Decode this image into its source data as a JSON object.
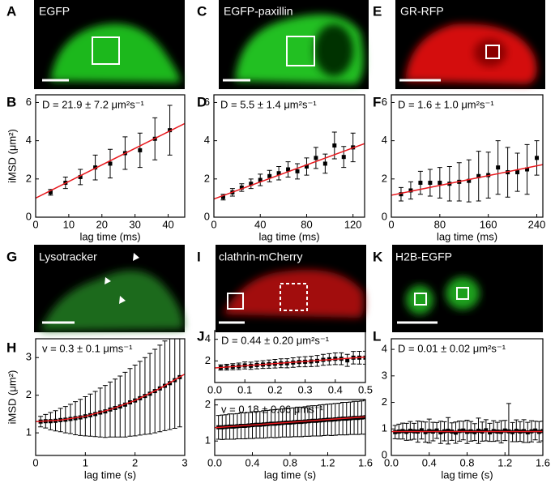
{
  "images": [
    {
      "letter": "A",
      "label": "EGFP"
    },
    {
      "letter": "C",
      "label": "EGFP-paxillin"
    },
    {
      "letter": "E",
      "label": "GR-RFP"
    },
    {
      "letter": "G",
      "label": "Lysotracker"
    },
    {
      "letter": "I",
      "label": "clathrin-mCherry"
    },
    {
      "letter": "K",
      "label": "H2B-EGFP"
    }
  ],
  "chart_data": [
    {
      "panel": "B",
      "type": "scatter",
      "annotation": "D = 21.9 ± 7.2 μm²s⁻¹",
      "x_label": "lag time (ms)",
      "y_label": "iMSD (μm²)",
      "x": [
        4.5,
        9,
        13.5,
        18,
        22.5,
        27,
        31.5,
        36,
        40.5
      ],
      "values": [
        1.3,
        1.8,
        2.1,
        2.6,
        2.8,
        3.35,
        3.5,
        4.1,
        4.55
      ],
      "errors": [
        0.15,
        0.3,
        0.4,
        0.65,
        0.75,
        0.85,
        0.9,
        1.1,
        1.3
      ],
      "color": "#000000",
      "fit": {
        "x": [
          0,
          45
        ],
        "y": [
          1.0,
          4.9
        ],
        "color": "#e8191e"
      },
      "xlim": [
        0,
        45
      ],
      "ylim": [
        0,
        6.4
      ],
      "xticks": [
        0,
        10,
        20,
        30,
        40
      ],
      "yticks": [
        0,
        2,
        4,
        6
      ]
    },
    {
      "panel": "D",
      "type": "scatter",
      "annotation": "D = 5.5 ± 1.4 μm²s⁻¹",
      "x_label": "lag time (ms)",
      "x": [
        8,
        16,
        24,
        32,
        40,
        48,
        56,
        64,
        72,
        80,
        88,
        96,
        104,
        112,
        120
      ],
      "values": [
        1.05,
        1.3,
        1.55,
        1.75,
        1.95,
        2.15,
        2.3,
        2.5,
        2.4,
        2.65,
        3.1,
        2.8,
        3.75,
        3.15,
        3.65
      ],
      "errors": [
        0.15,
        0.2,
        0.2,
        0.25,
        0.3,
        0.3,
        0.35,
        0.4,
        0.4,
        0.45,
        0.55,
        0.5,
        0.7,
        0.55,
        0.75
      ],
      "color": "#000000",
      "fit": {
        "x": [
          0,
          130
        ],
        "y": [
          0.95,
          3.85
        ],
        "color": "#e8191e"
      },
      "xlim": [
        0,
        130
      ],
      "ylim": [
        0,
        6.4
      ],
      "xticks": [
        0,
        40,
        80,
        120
      ],
      "yticks": [
        0,
        2,
        4,
        6
      ]
    },
    {
      "panel": "F",
      "type": "scatter",
      "annotation": "D = 1.6 ± 1.0 μm²s⁻¹",
      "x_label": "lag time (ms)",
      "x": [
        16,
        32,
        48,
        64,
        80,
        96,
        112,
        128,
        144,
        160,
        176,
        192,
        208,
        224,
        240
      ],
      "values": [
        1.2,
        1.4,
        1.8,
        1.8,
        1.8,
        1.75,
        1.85,
        1.9,
        2.15,
        2.2,
        2.6,
        2.35,
        2.35,
        2.5,
        3.1
      ],
      "errors": [
        0.35,
        0.45,
        0.6,
        0.7,
        0.8,
        0.9,
        1.0,
        1.1,
        1.3,
        1.2,
        1.4,
        1.3,
        1.0,
        1.3,
        0.9
      ],
      "color": "#000000",
      "fit": {
        "x": [
          0,
          250
        ],
        "y": [
          1.15,
          2.75
        ],
        "color": "#e8191e"
      },
      "xlim": [
        0,
        250
      ],
      "ylim": [
        0,
        6.4
      ],
      "xticks": [
        0,
        80,
        160,
        240
      ],
      "yticks": [
        0,
        2,
        4,
        6
      ]
    },
    {
      "panel": "H",
      "type": "scatter",
      "annotation": "v = 0.3 ± 0.1 μms⁻¹",
      "x_label": "lag time (s)",
      "y_label": "iMSD (μm²)",
      "x": [
        0.1,
        0.2,
        0.3,
        0.4,
        0.5,
        0.6,
        0.7,
        0.8,
        0.9,
        1.0,
        1.1,
        1.2,
        1.3,
        1.4,
        1.5,
        1.6,
        1.7,
        1.8,
        1.9,
        2.0,
        2.1,
        2.2,
        2.3,
        2.4,
        2.5,
        2.6,
        2.7,
        2.8,
        2.9
      ],
      "values": [
        1.3,
        1.31,
        1.31,
        1.32,
        1.34,
        1.35,
        1.37,
        1.39,
        1.41,
        1.44,
        1.47,
        1.5,
        1.54,
        1.57,
        1.62,
        1.66,
        1.7,
        1.75,
        1.81,
        1.86,
        1.92,
        1.98,
        2.04,
        2.11,
        2.18,
        2.25,
        2.32,
        2.4,
        2.48
      ],
      "errors": [
        0.14,
        0.18,
        0.23,
        0.27,
        0.31,
        0.35,
        0.39,
        0.44,
        0.48,
        0.52,
        0.56,
        0.6,
        0.65,
        0.69,
        0.73,
        0.77,
        0.81,
        0.86,
        0.9,
        0.94,
        0.98,
        1.02,
        1.07,
        1.11,
        1.15,
        1.19,
        1.23,
        1.28,
        1.32
      ],
      "color": "#000000",
      "fit": {
        "x": [
          0,
          0.5,
          1,
          1.5,
          2,
          2.5,
          3
        ],
        "y": [
          1.3,
          1.34,
          1.44,
          1.62,
          1.86,
          2.18,
          2.56
        ],
        "color": "#e8191e"
      },
      "xlim": [
        0,
        3
      ],
      "ylim": [
        0.4,
        3.5
      ],
      "xticks": [
        0,
        1,
        2,
        3
      ],
      "yticks": [
        1,
        2,
        3
      ]
    },
    {
      "panel": "J",
      "type": "scatter",
      "annotation": "D = 0.44 ± 0.20 μm²s⁻¹",
      "x": [
        0.02,
        0.04,
        0.06,
        0.08,
        0.1,
        0.12,
        0.14,
        0.16,
        0.18,
        0.2,
        0.22,
        0.24,
        0.26,
        0.28,
        0.3,
        0.32,
        0.34,
        0.36,
        0.38,
        0.4,
        0.42,
        0.44,
        0.46,
        0.48,
        0.5
      ],
      "values": [
        1.39,
        1.42,
        1.46,
        1.5,
        1.58,
        1.55,
        1.62,
        1.66,
        1.7,
        1.74,
        1.78,
        1.78,
        1.85,
        1.9,
        1.92,
        1.95,
        2.0,
        2.1,
        2.15,
        2.2,
        2.2,
        2.05,
        2.3,
        2.3,
        2.3
      ],
      "errors": [
        0.25,
        0.27,
        0.28,
        0.3,
        0.32,
        0.33,
        0.35,
        0.36,
        0.38,
        0.4,
        0.41,
        0.42,
        0.44,
        0.45,
        0.47,
        0.48,
        0.5,
        0.51,
        0.52,
        0.54,
        0.55,
        0.56,
        0.58,
        0.59,
        0.6
      ],
      "color": "#000000",
      "fit": {
        "x": [
          0,
          0.5
        ],
        "y": [
          1.35,
          2.35
        ],
        "color": "#e8191e"
      },
      "xlim": [
        0,
        0.5
      ],
      "ylim": [
        0,
        4.8
      ],
      "xticks": [
        {
          "value": 0,
          "label": "0.0"
        },
        0.1,
        0.2,
        0.3,
        0.4,
        0.5
      ],
      "yticks": [
        2,
        4
      ]
    },
    {
      "type": "scatter",
      "annotation": "v = 0.18 ± 0.06 μms⁻¹",
      "x_label": "lag time (s)",
      "x": [
        0.04,
        0.08,
        0.12,
        0.16,
        0.2,
        0.24,
        0.28,
        0.32,
        0.36,
        0.4,
        0.44,
        0.48,
        0.52,
        0.56,
        0.6,
        0.64,
        0.68,
        0.72,
        0.76,
        0.8,
        0.84,
        0.88,
        0.92,
        0.96,
        1.0,
        1.04,
        1.08,
        1.12,
        1.16,
        1.2,
        1.24,
        1.28,
        1.32,
        1.36,
        1.4,
        1.44,
        1.48,
        1.52,
        1.56,
        1.6
      ],
      "values": [
        1.38,
        1.38,
        1.39,
        1.4,
        1.4,
        1.41,
        1.42,
        1.42,
        1.43,
        1.44,
        1.45,
        1.45,
        1.46,
        1.47,
        1.48,
        1.48,
        1.49,
        1.5,
        1.51,
        1.51,
        1.52,
        1.53,
        1.53,
        1.54,
        1.55,
        1.56,
        1.56,
        1.57,
        1.58,
        1.59,
        1.59,
        1.6,
        1.61,
        1.62,
        1.62,
        1.63,
        1.64,
        1.64,
        1.65,
        1.66
      ],
      "errors": [
        0.33,
        0.34,
        0.34,
        0.35,
        0.35,
        0.35,
        0.36,
        0.36,
        0.36,
        0.37,
        0.37,
        0.37,
        0.38,
        0.38,
        0.38,
        0.39,
        0.39,
        0.39,
        0.4,
        0.4,
        0.4,
        0.41,
        0.41,
        0.41,
        0.42,
        0.42,
        0.42,
        0.43,
        0.43,
        0.43,
        0.44,
        0.44,
        0.44,
        0.45,
        0.45,
        0.45,
        0.46,
        0.46,
        0.46,
        0.47
      ],
      "color": "#000000",
      "fit": {
        "x": [
          0,
          1.6
        ],
        "y": [
          1.37,
          1.67
        ],
        "color": "#e8191e"
      },
      "xlim": [
        0,
        1.6
      ],
      "ylim": [
        0.6,
        2.15
      ],
      "xticks": [
        {
          "value": 0,
          "label": "0.0"
        },
        0.4,
        0.8,
        1.2,
        1.6
      ],
      "yticks": [
        1,
        2
      ]
    },
    {
      "panel": "L",
      "type": "scatter",
      "annotation": "D = 0.01 ± 0.02 μm²s⁻¹",
      "x_label": "lag time (s)",
      "x": [
        0.04,
        0.08,
        0.12,
        0.16,
        0.2,
        0.24,
        0.28,
        0.32,
        0.36,
        0.4,
        0.44,
        0.48,
        0.52,
        0.56,
        0.6,
        0.64,
        0.68,
        0.72,
        0.76,
        0.8,
        0.84,
        0.88,
        0.92,
        0.96,
        1.0,
        1.04,
        1.08,
        1.12,
        1.16,
        1.2,
        1.24,
        1.28,
        1.32,
        1.36,
        1.4,
        1.44,
        1.48,
        1.52,
        1.56,
        1.6
      ],
      "values": [
        0.88,
        0.9,
        0.92,
        0.89,
        0.93,
        0.91,
        0.9,
        0.95,
        0.88,
        0.92,
        0.9,
        0.94,
        0.87,
        0.91,
        0.93,
        0.9,
        0.86,
        0.92,
        0.94,
        0.89,
        0.91,
        0.88,
        0.93,
        0.9,
        0.95,
        0.87,
        0.92,
        0.9,
        0.89,
        0.94,
        0.91,
        0.88,
        0.93,
        0.9,
        0.92,
        0.87,
        0.91,
        0.94,
        0.89,
        0.92
      ],
      "errors": [
        0.25,
        0.28,
        0.3,
        0.32,
        0.35,
        0.3,
        0.4,
        0.33,
        0.38,
        0.45,
        0.35,
        0.3,
        0.42,
        0.36,
        0.5,
        0.33,
        0.4,
        0.38,
        0.35,
        0.44,
        0.37,
        0.32,
        0.48,
        0.36,
        0.4,
        0.34,
        0.39,
        0.35,
        0.42,
        0.38,
        1.05,
        0.36,
        0.41,
        0.37,
        0.43,
        0.38,
        0.4,
        0.35,
        0.39,
        0.37
      ],
      "color": "#000000",
      "fit": {
        "x": [
          0,
          1.6
        ],
        "y": [
          0.9,
          0.9
        ],
        "color": "#e8191e"
      },
      "xlim": [
        0,
        1.6
      ],
      "ylim": [
        0,
        4.4
      ],
      "xticks": [
        {
          "value": 0,
          "label": "0.0"
        },
        0.4,
        0.8,
        1.2,
        1.6
      ],
      "yticks": [
        0,
        1,
        2,
        3,
        4
      ]
    }
  ]
}
